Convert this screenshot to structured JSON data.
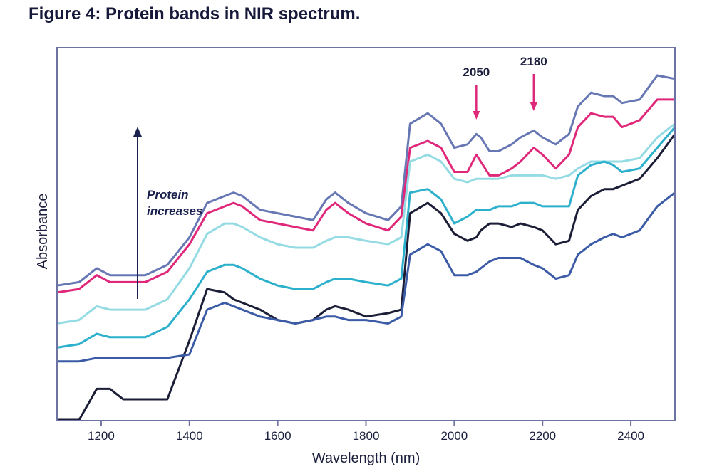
{
  "figure": {
    "label": "Figure 4:",
    "caption": "Protein bands in NIR spectrum."
  },
  "colors": {
    "text": "#1b1e3c",
    "frame": "#6d74a4",
    "arrow": "#1b2250",
    "marker": "#e0287a"
  },
  "chart_data": {
    "type": "line",
    "xlabel": "Wavelength (nm)",
    "ylabel": "Absorbance",
    "xlim": [
      1100,
      2500
    ],
    "ylim": [
      0,
      1
    ],
    "xticks": [
      1200,
      1400,
      1600,
      1800,
      2000,
      2200,
      2400
    ],
    "y_tick_labels": "none",
    "grid": false,
    "legend": "none",
    "annotations": [
      {
        "text": "2050",
        "x": 2050
      },
      {
        "text": "2180",
        "x": 2180
      }
    ],
    "trend_arrow": {
      "label_line1": "Protein",
      "label_line2": "increases",
      "direction": "up"
    },
    "x": [
      1100,
      1150,
      1190,
      1220,
      1250,
      1300,
      1350,
      1400,
      1440,
      1480,
      1500,
      1520,
      1560,
      1600,
      1640,
      1680,
      1710,
      1730,
      1760,
      1800,
      1850,
      1880,
      1900,
      1940,
      1970,
      2000,
      2030,
      2050,
      2060,
      2080,
      2100,
      2130,
      2150,
      2180,
      2200,
      2230,
      2260,
      2280,
      2310,
      2340,
      2360,
      2380,
      2420,
      2460,
      2500
    ],
    "series": [
      {
        "color": "#6677b4",
        "values": [
          0.39,
          0.4,
          0.44,
          0.42,
          0.42,
          0.42,
          0.45,
          0.53,
          0.63,
          0.65,
          0.66,
          0.65,
          0.61,
          0.6,
          0.59,
          0.58,
          0.64,
          0.66,
          0.63,
          0.6,
          0.58,
          0.62,
          0.86,
          0.89,
          0.86,
          0.79,
          0.8,
          0.83,
          0.82,
          0.78,
          0.78,
          0.8,
          0.82,
          0.84,
          0.82,
          0.8,
          0.83,
          0.91,
          0.95,
          0.94,
          0.94,
          0.92,
          0.93,
          1.0,
          0.99
        ]
      },
      {
        "color": "#e0287a",
        "values": [
          0.37,
          0.38,
          0.42,
          0.4,
          0.4,
          0.4,
          0.43,
          0.51,
          0.6,
          0.62,
          0.63,
          0.62,
          0.58,
          0.57,
          0.56,
          0.55,
          0.61,
          0.63,
          0.6,
          0.57,
          0.55,
          0.59,
          0.79,
          0.81,
          0.79,
          0.72,
          0.72,
          0.77,
          0.75,
          0.71,
          0.71,
          0.73,
          0.75,
          0.79,
          0.77,
          0.73,
          0.77,
          0.85,
          0.89,
          0.88,
          0.88,
          0.85,
          0.87,
          0.93,
          0.93
        ]
      },
      {
        "color": "#94dbe4",
        "values": [
          0.28,
          0.29,
          0.33,
          0.32,
          0.32,
          0.32,
          0.35,
          0.44,
          0.54,
          0.57,
          0.57,
          0.56,
          0.53,
          0.51,
          0.5,
          0.5,
          0.52,
          0.53,
          0.53,
          0.52,
          0.51,
          0.53,
          0.75,
          0.77,
          0.75,
          0.7,
          0.69,
          0.7,
          0.7,
          0.7,
          0.7,
          0.71,
          0.71,
          0.71,
          0.71,
          0.7,
          0.71,
          0.73,
          0.75,
          0.75,
          0.75,
          0.75,
          0.76,
          0.82,
          0.86
        ]
      },
      {
        "color": "#2cb0cb",
        "values": [
          0.21,
          0.22,
          0.25,
          0.24,
          0.24,
          0.24,
          0.27,
          0.35,
          0.43,
          0.45,
          0.45,
          0.44,
          0.41,
          0.39,
          0.38,
          0.38,
          0.4,
          0.41,
          0.41,
          0.4,
          0.39,
          0.41,
          0.66,
          0.67,
          0.64,
          0.57,
          0.59,
          0.61,
          0.61,
          0.61,
          0.62,
          0.62,
          0.63,
          0.63,
          0.62,
          0.62,
          0.62,
          0.71,
          0.74,
          0.75,
          0.74,
          0.72,
          0.73,
          0.79,
          0.85
        ]
      },
      {
        "color": "#1b1e36",
        "values": [
          0.0,
          0.0,
          0.09,
          0.09,
          0.06,
          0.06,
          0.06,
          0.23,
          0.38,
          0.37,
          0.35,
          0.34,
          0.32,
          0.29,
          0.28,
          0.29,
          0.32,
          0.33,
          0.32,
          0.3,
          0.31,
          0.32,
          0.6,
          0.63,
          0.6,
          0.54,
          0.52,
          0.53,
          0.55,
          0.57,
          0.57,
          0.56,
          0.57,
          0.56,
          0.55,
          0.51,
          0.52,
          0.61,
          0.65,
          0.67,
          0.67,
          0.68,
          0.7,
          0.76,
          0.83
        ]
      },
      {
        "color": "#3c5ba6",
        "values": [
          0.17,
          0.17,
          0.18,
          0.18,
          0.18,
          0.18,
          0.18,
          0.19,
          0.32,
          0.34,
          0.33,
          0.32,
          0.3,
          0.29,
          0.28,
          0.29,
          0.3,
          0.3,
          0.29,
          0.29,
          0.28,
          0.3,
          0.48,
          0.51,
          0.49,
          0.42,
          0.42,
          0.43,
          0.44,
          0.46,
          0.47,
          0.47,
          0.47,
          0.45,
          0.44,
          0.41,
          0.42,
          0.48,
          0.51,
          0.53,
          0.54,
          0.53,
          0.55,
          0.62,
          0.66
        ]
      }
    ]
  }
}
